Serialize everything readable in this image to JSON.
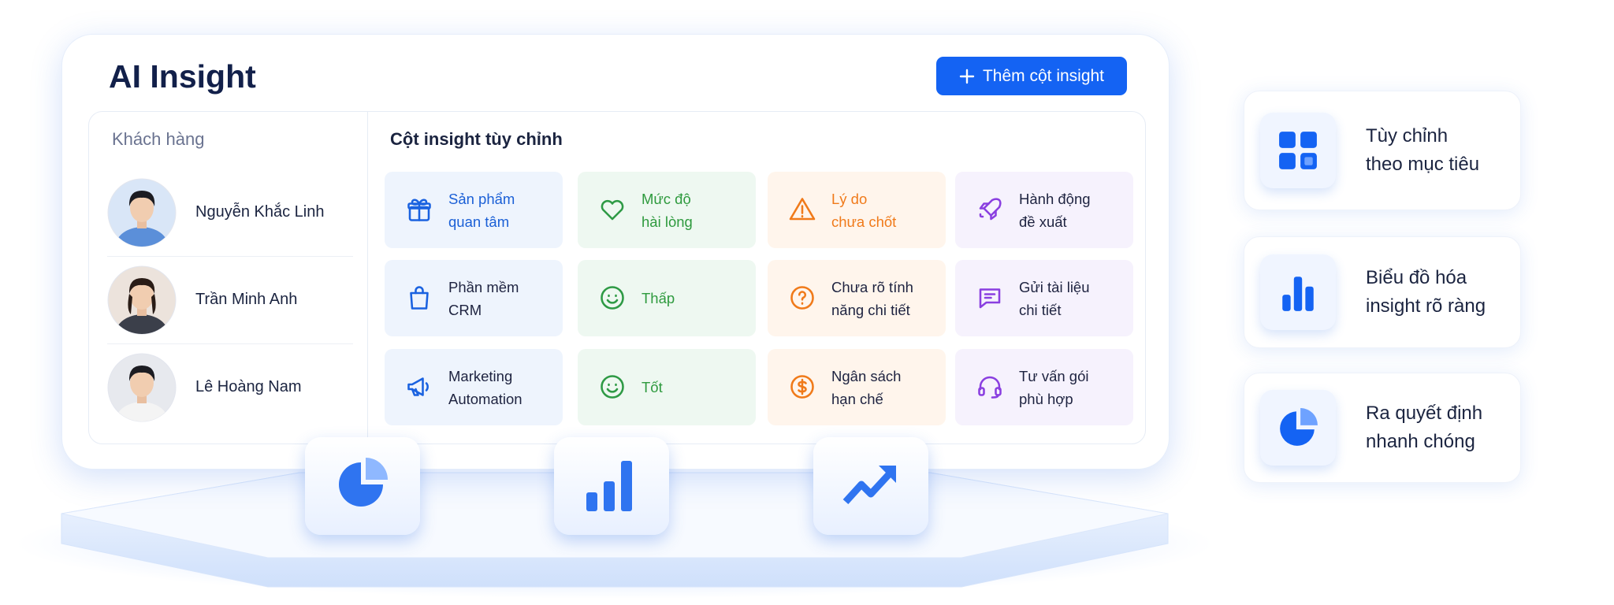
{
  "header": {
    "title": "AI Insight",
    "button": "Thêm cột insight"
  },
  "customers": {
    "title": "Khách hàng",
    "names": [
      "Nguyễn Khắc Linh",
      "Trần Minh Anh",
      "Lê Hoàng Nam"
    ]
  },
  "insights": {
    "title": "Cột insight tùy chỉnh",
    "rows": [
      [
        [
          "Sản phẩm",
          "quan tâm"
        ],
        [
          "Mức độ",
          "hài lòng"
        ],
        [
          "Lý do",
          "chưa chốt"
        ],
        [
          "Hành động",
          "đề xuất"
        ]
      ],
      [
        [
          "Phần mềm",
          "CRM"
        ],
        [
          "Thấp"
        ],
        [
          "Chưa rõ tính",
          "năng chi tiết"
        ],
        [
          "Gửi tài liệu",
          "chi tiết"
        ]
      ],
      [
        [
          "Marketing",
          "Automation"
        ],
        [
          "Tốt"
        ],
        [
          "Ngân sách",
          "hạn chế"
        ],
        [
          "Tư vấn gói",
          "phù hợp"
        ]
      ]
    ]
  },
  "features": [
    [
      "Tùy chỉnh",
      "theo mục tiêu"
    ],
    [
      "Biểu đồ hóa",
      "insight rõ ràng"
    ],
    [
      "Ra quyết định",
      "nhanh chóng"
    ]
  ]
}
